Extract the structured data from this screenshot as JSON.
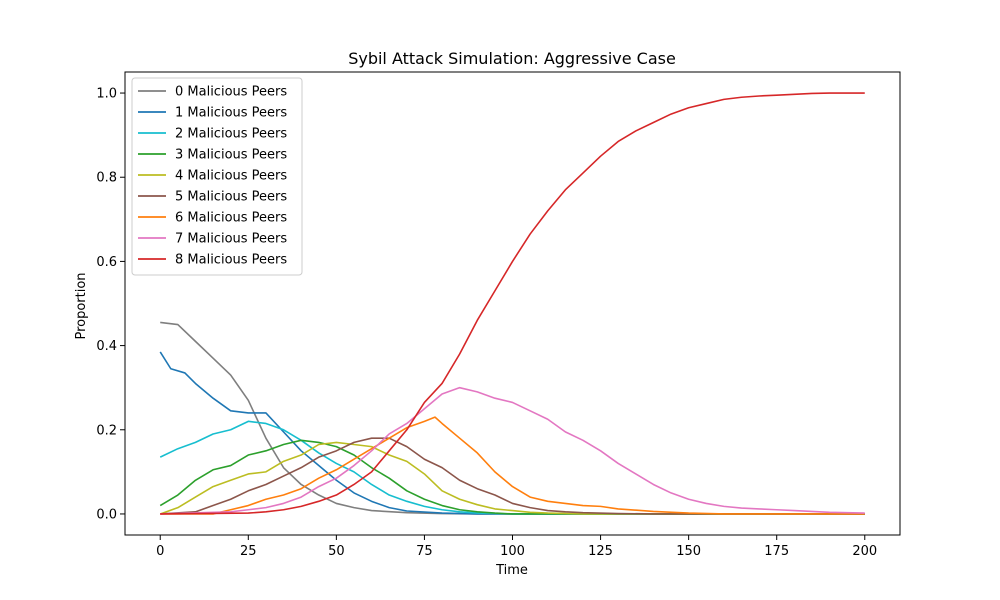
{
  "chart_data": {
    "type": "line",
    "title": "Sybil Attack Simulation: Aggressive Case",
    "xlabel": "Time",
    "ylabel": "Proportion",
    "xlim": [
      -10,
      210
    ],
    "ylim": [
      -0.05,
      1.05
    ],
    "xticks": [
      0,
      25,
      50,
      75,
      100,
      125,
      150,
      175,
      200
    ],
    "yticks": [
      0.0,
      0.2,
      0.4,
      0.6,
      0.8,
      1.0
    ],
    "xtick_labels": [
      "0",
      "25",
      "50",
      "75",
      "100",
      "125",
      "150",
      "175",
      "200"
    ],
    "ytick_labels": [
      "0.0",
      "0.2",
      "0.4",
      "0.6",
      "0.8",
      "1.0"
    ],
    "grid": false,
    "legend_position": "upper-left",
    "series": [
      {
        "name": "0 Malicious Peers",
        "color": "#7f7f7f",
        "points": [
          [
            0,
            0.455
          ],
          [
            5,
            0.45
          ],
          [
            10,
            0.41
          ],
          [
            15,
            0.37
          ],
          [
            20,
            0.33
          ],
          [
            25,
            0.27
          ],
          [
            30,
            0.18
          ],
          [
            35,
            0.11
          ],
          [
            40,
            0.07
          ],
          [
            45,
            0.045
          ],
          [
            50,
            0.025
          ],
          [
            55,
            0.015
          ],
          [
            60,
            0.008
          ],
          [
            70,
            0.003
          ],
          [
            80,
            0.001
          ],
          [
            90,
            0
          ],
          [
            200,
            0
          ]
        ]
      },
      {
        "name": "1 Malicious Peers",
        "color": "#1f77b4",
        "points": [
          [
            0,
            0.385
          ],
          [
            3,
            0.345
          ],
          [
            7,
            0.335
          ],
          [
            10,
            0.31
          ],
          [
            15,
            0.275
          ],
          [
            20,
            0.245
          ],
          [
            25,
            0.24
          ],
          [
            30,
            0.24
          ],
          [
            35,
            0.195
          ],
          [
            40,
            0.15
          ],
          [
            45,
            0.115
          ],
          [
            50,
            0.08
          ],
          [
            55,
            0.05
          ],
          [
            60,
            0.03
          ],
          [
            65,
            0.015
          ],
          [
            70,
            0.007
          ],
          [
            80,
            0.002
          ],
          [
            90,
            0
          ],
          [
            200,
            0
          ]
        ]
      },
      {
        "name": "2 Malicious Peers",
        "color": "#17becf",
        "points": [
          [
            0,
            0.135
          ],
          [
            5,
            0.155
          ],
          [
            10,
            0.17
          ],
          [
            15,
            0.19
          ],
          [
            20,
            0.2
          ],
          [
            25,
            0.22
          ],
          [
            30,
            0.215
          ],
          [
            35,
            0.2
          ],
          [
            40,
            0.175
          ],
          [
            45,
            0.145
          ],
          [
            50,
            0.12
          ],
          [
            55,
            0.1
          ],
          [
            60,
            0.07
          ],
          [
            65,
            0.045
          ],
          [
            70,
            0.03
          ],
          [
            75,
            0.018
          ],
          [
            80,
            0.01
          ],
          [
            85,
            0.005
          ],
          [
            90,
            0.002
          ],
          [
            100,
            0
          ],
          [
            200,
            0
          ]
        ]
      },
      {
        "name": "3 Malicious Peers",
        "color": "#2ca02c",
        "points": [
          [
            0,
            0.02
          ],
          [
            5,
            0.045
          ],
          [
            10,
            0.08
          ],
          [
            15,
            0.105
          ],
          [
            20,
            0.115
          ],
          [
            25,
            0.14
          ],
          [
            30,
            0.15
          ],
          [
            35,
            0.165
          ],
          [
            40,
            0.175
          ],
          [
            45,
            0.17
          ],
          [
            50,
            0.16
          ],
          [
            55,
            0.14
          ],
          [
            60,
            0.11
          ],
          [
            65,
            0.085
          ],
          [
            70,
            0.055
          ],
          [
            75,
            0.035
          ],
          [
            80,
            0.02
          ],
          [
            85,
            0.01
          ],
          [
            90,
            0.005
          ],
          [
            95,
            0.002
          ],
          [
            100,
            0
          ],
          [
            200,
            0
          ]
        ]
      },
      {
        "name": "4 Malicious Peers",
        "color": "#bcbd22",
        "points": [
          [
            0,
            0.0
          ],
          [
            5,
            0.015
          ],
          [
            10,
            0.04
          ],
          [
            15,
            0.065
          ],
          [
            20,
            0.08
          ],
          [
            25,
            0.095
          ],
          [
            30,
            0.1
          ],
          [
            35,
            0.125
          ],
          [
            40,
            0.14
          ],
          [
            45,
            0.165
          ],
          [
            50,
            0.17
          ],
          [
            55,
            0.165
          ],
          [
            60,
            0.16
          ],
          [
            65,
            0.14
          ],
          [
            70,
            0.125
          ],
          [
            75,
            0.095
          ],
          [
            80,
            0.055
          ],
          [
            85,
            0.035
          ],
          [
            90,
            0.022
          ],
          [
            95,
            0.012
          ],
          [
            100,
            0.008
          ],
          [
            105,
            0.004
          ],
          [
            110,
            0.002
          ],
          [
            120,
            0
          ],
          [
            200,
            0
          ]
        ]
      },
      {
        "name": "5 Malicious Peers",
        "color": "#8c564b",
        "points": [
          [
            0,
            0.0
          ],
          [
            10,
            0.005
          ],
          [
            15,
            0.02
          ],
          [
            20,
            0.035
          ],
          [
            25,
            0.055
          ],
          [
            30,
            0.07
          ],
          [
            35,
            0.09
          ],
          [
            40,
            0.11
          ],
          [
            45,
            0.135
          ],
          [
            50,
            0.15
          ],
          [
            55,
            0.17
          ],
          [
            60,
            0.18
          ],
          [
            65,
            0.18
          ],
          [
            70,
            0.16
          ],
          [
            75,
            0.13
          ],
          [
            80,
            0.11
          ],
          [
            85,
            0.08
          ],
          [
            90,
            0.06
          ],
          [
            95,
            0.045
          ],
          [
            100,
            0.025
          ],
          [
            105,
            0.015
          ],
          [
            110,
            0.008
          ],
          [
            115,
            0.005
          ],
          [
            120,
            0.003
          ],
          [
            130,
            0.001
          ],
          [
            140,
            0
          ],
          [
            200,
            0
          ]
        ]
      },
      {
        "name": "6 Malicious Peers",
        "color": "#ff7f0e",
        "points": [
          [
            0,
            0.0
          ],
          [
            15,
            0.0
          ],
          [
            20,
            0.01
          ],
          [
            25,
            0.02
          ],
          [
            30,
            0.035
          ],
          [
            35,
            0.045
          ],
          [
            40,
            0.06
          ],
          [
            45,
            0.085
          ],
          [
            50,
            0.105
          ],
          [
            55,
            0.13
          ],
          [
            60,
            0.155
          ],
          [
            65,
            0.18
          ],
          [
            70,
            0.205
          ],
          [
            75,
            0.22
          ],
          [
            78,
            0.23
          ],
          [
            80,
            0.215
          ],
          [
            85,
            0.18
          ],
          [
            90,
            0.145
          ],
          [
            95,
            0.1
          ],
          [
            100,
            0.065
          ],
          [
            105,
            0.04
          ],
          [
            110,
            0.03
          ],
          [
            115,
            0.025
          ],
          [
            120,
            0.02
          ],
          [
            125,
            0.018
          ],
          [
            130,
            0.012
          ],
          [
            140,
            0.006
          ],
          [
            150,
            0.002
          ],
          [
            160,
            0
          ],
          [
            200,
            0
          ]
        ]
      },
      {
        "name": "7 Malicious Peers",
        "color": "#e377c2",
        "points": [
          [
            0,
            0.0
          ],
          [
            20,
            0.005
          ],
          [
            25,
            0.01
          ],
          [
            30,
            0.015
          ],
          [
            35,
            0.025
          ],
          [
            40,
            0.04
          ],
          [
            45,
            0.065
          ],
          [
            50,
            0.085
          ],
          [
            55,
            0.115
          ],
          [
            60,
            0.15
          ],
          [
            65,
            0.19
          ],
          [
            70,
            0.215
          ],
          [
            75,
            0.25
          ],
          [
            80,
            0.285
          ],
          [
            85,
            0.3
          ],
          [
            90,
            0.29
          ],
          [
            95,
            0.275
          ],
          [
            100,
            0.265
          ],
          [
            105,
            0.245
          ],
          [
            110,
            0.225
          ],
          [
            115,
            0.195
          ],
          [
            120,
            0.175
          ],
          [
            125,
            0.15
          ],
          [
            130,
            0.12
          ],
          [
            135,
            0.095
          ],
          [
            140,
            0.07
          ],
          [
            145,
            0.05
          ],
          [
            150,
            0.035
          ],
          [
            155,
            0.025
          ],
          [
            160,
            0.018
          ],
          [
            165,
            0.014
          ],
          [
            170,
            0.012
          ],
          [
            175,
            0.01
          ],
          [
            180,
            0.008
          ],
          [
            185,
            0.006
          ],
          [
            190,
            0.004
          ],
          [
            200,
            0.002
          ]
        ]
      },
      {
        "name": "8 Malicious Peers",
        "color": "#d62728",
        "points": [
          [
            0,
            0.0
          ],
          [
            25,
            0.002
          ],
          [
            30,
            0.005
          ],
          [
            35,
            0.01
          ],
          [
            40,
            0.018
          ],
          [
            45,
            0.03
          ],
          [
            50,
            0.045
          ],
          [
            55,
            0.07
          ],
          [
            60,
            0.1
          ],
          [
            65,
            0.15
          ],
          [
            70,
            0.2
          ],
          [
            75,
            0.265
          ],
          [
            80,
            0.31
          ],
          [
            85,
            0.38
          ],
          [
            90,
            0.46
          ],
          [
            95,
            0.53
          ],
          [
            100,
            0.6
          ],
          [
            105,
            0.665
          ],
          [
            110,
            0.72
          ],
          [
            115,
            0.77
          ],
          [
            120,
            0.81
          ],
          [
            125,
            0.85
          ],
          [
            130,
            0.885
          ],
          [
            135,
            0.91
          ],
          [
            140,
            0.93
          ],
          [
            145,
            0.95
          ],
          [
            150,
            0.965
          ],
          [
            155,
            0.975
          ],
          [
            160,
            0.985
          ],
          [
            165,
            0.99
          ],
          [
            170,
            0.993
          ],
          [
            175,
            0.995
          ],
          [
            180,
            0.997
          ],
          [
            185,
            0.999
          ],
          [
            190,
            1.0
          ],
          [
            200,
            1.0
          ]
        ]
      }
    ]
  }
}
